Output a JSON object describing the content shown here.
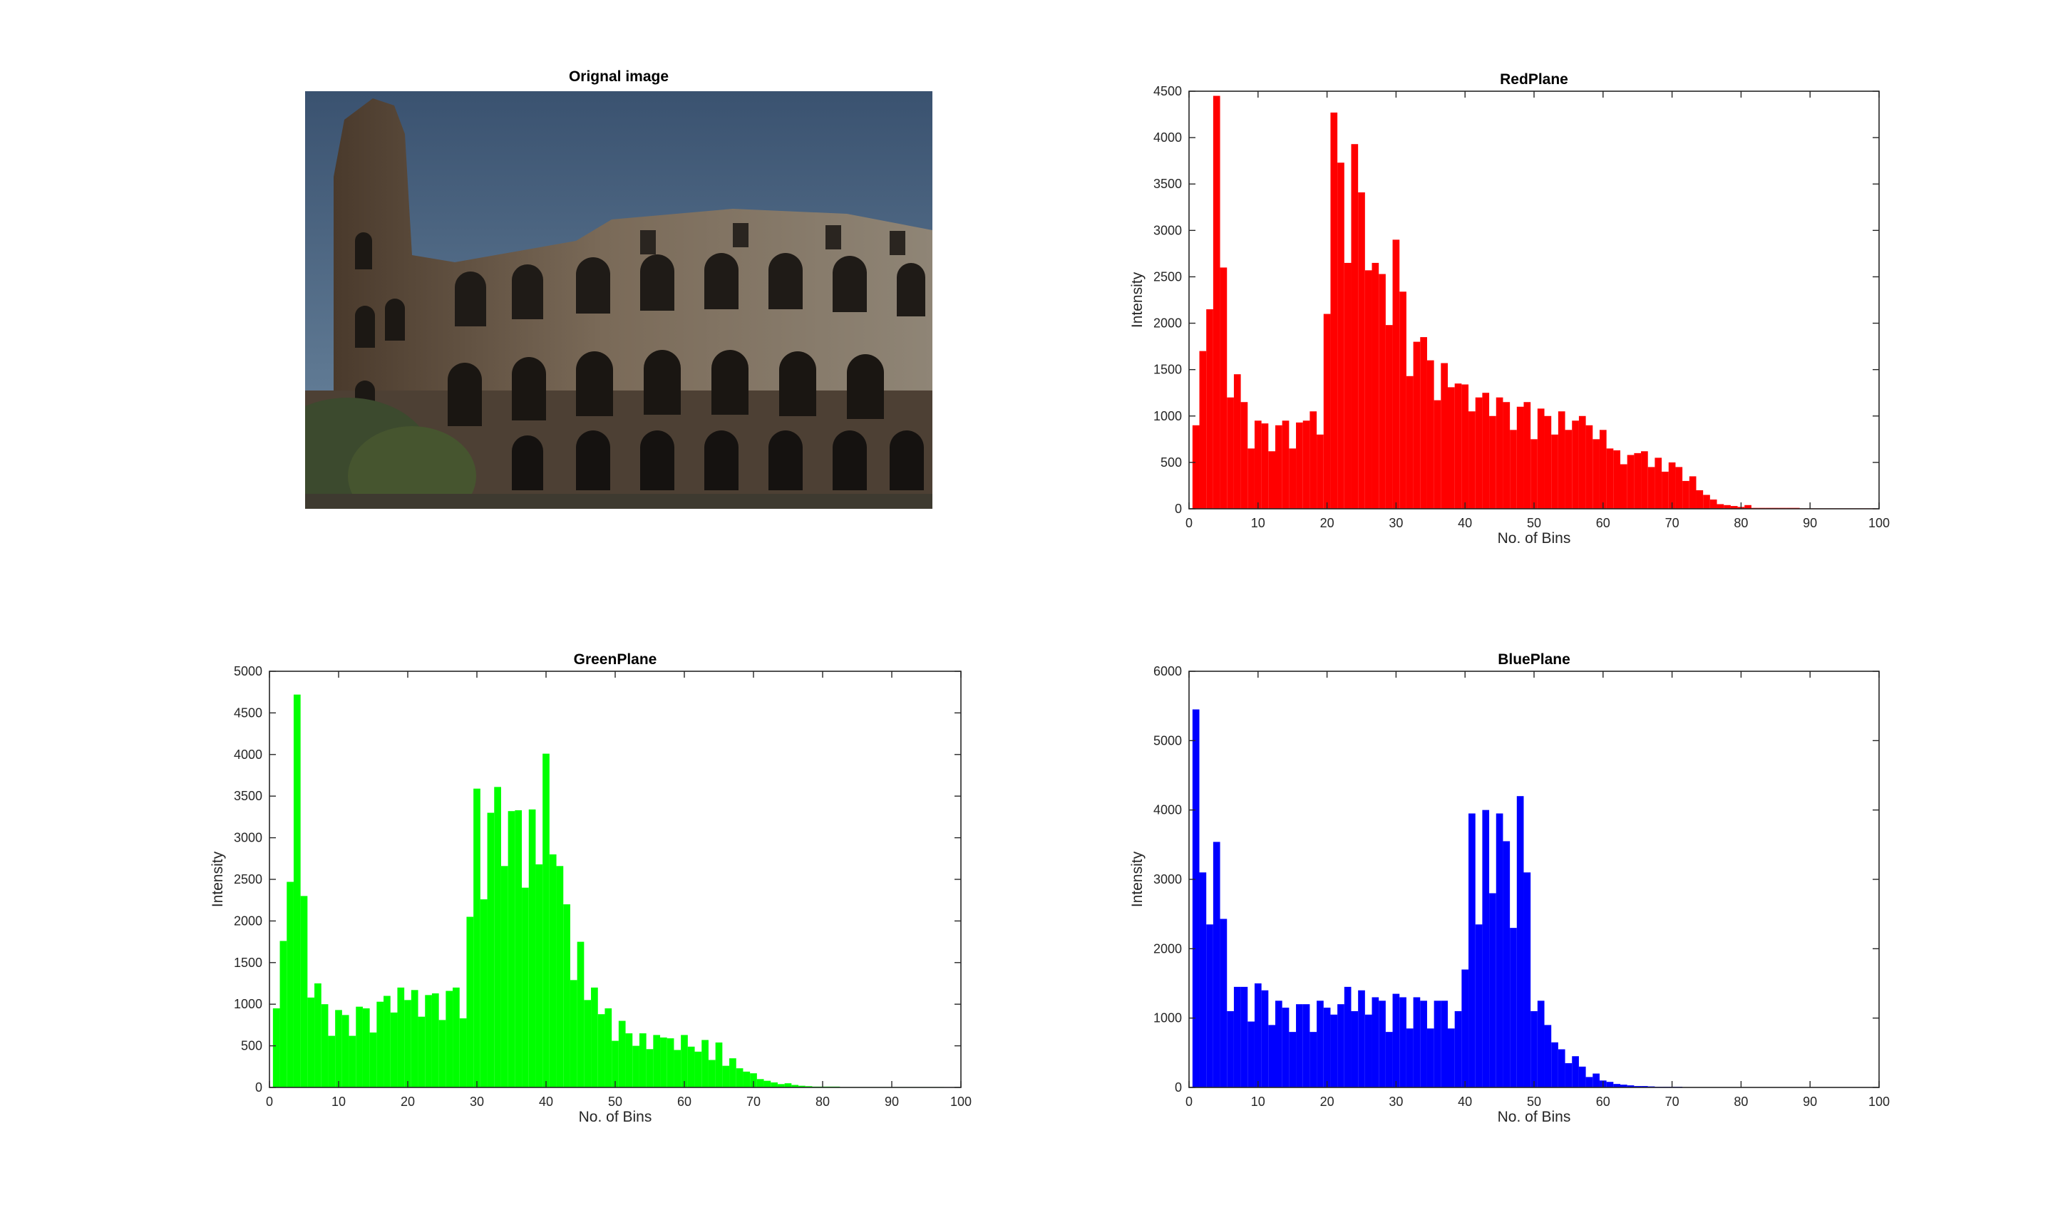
{
  "figure": {
    "image_panel": {
      "title": "Orignal image"
    }
  },
  "chart_data": [
    {
      "type": "bar",
      "title": "RedPlane",
      "xlabel": "No. of Bins",
      "ylabel": "Intensity",
      "color": "#ff0000",
      "xlim": [
        0,
        100
      ],
      "ylim": [
        0,
        4500
      ],
      "xticks": [
        0,
        10,
        20,
        30,
        40,
        50,
        60,
        70,
        80,
        90,
        100
      ],
      "yticks": [
        0,
        500,
        1000,
        1500,
        2000,
        2500,
        3000,
        3500,
        4000,
        4500
      ],
      "x": [
        1,
        2,
        3,
        4,
        5,
        6,
        7,
        8,
        9,
        10,
        11,
        12,
        13,
        14,
        15,
        16,
        17,
        18,
        19,
        20,
        21,
        22,
        23,
        24,
        25,
        26,
        27,
        28,
        29,
        30,
        31,
        32,
        33,
        34,
        35,
        36,
        37,
        38,
        39,
        40,
        41,
        42,
        43,
        44,
        45,
        46,
        47,
        48,
        49,
        50,
        51,
        52,
        53,
        54,
        55,
        56,
        57,
        58,
        59,
        60,
        61,
        62,
        63,
        64,
        65,
        66,
        67,
        68,
        69,
        70,
        71,
        72,
        73,
        74,
        75,
        76,
        77,
        78,
        79,
        80,
        81,
        82,
        83,
        84,
        85,
        86,
        87,
        88,
        89,
        90,
        91,
        92,
        93,
        94,
        95,
        96,
        97,
        98,
        99,
        100
      ],
      "values": [
        900,
        1700,
        2150,
        4450,
        2600,
        1200,
        1450,
        1150,
        650,
        950,
        920,
        620,
        900,
        950,
        650,
        930,
        950,
        1050,
        800,
        2100,
        4270,
        3730,
        2650,
        3930,
        3410,
        2570,
        2650,
        2530,
        1980,
        2900,
        2340,
        1430,
        1800,
        1850,
        1600,
        1170,
        1570,
        1310,
        1350,
        1340,
        1050,
        1200,
        1250,
        1000,
        1200,
        1150,
        850,
        1100,
        1150,
        750,
        1080,
        1000,
        800,
        1050,
        850,
        950,
        1000,
        900,
        750,
        850,
        650,
        630,
        480,
        580,
        600,
        620,
        450,
        550,
        400,
        500,
        450,
        300,
        350,
        200,
        150,
        100,
        50,
        40,
        30,
        20,
        40,
        10,
        10,
        10,
        10,
        10,
        10,
        10,
        5,
        5,
        5,
        5,
        5,
        5,
        5,
        5,
        5,
        5,
        5,
        0
      ]
    },
    {
      "type": "bar",
      "title": "GreenPlane",
      "xlabel": "No. of Bins",
      "ylabel": "Intensity",
      "color": "#00ff00",
      "xlim": [
        0,
        100
      ],
      "ylim": [
        0,
        5000
      ],
      "xticks": [
        0,
        10,
        20,
        30,
        40,
        50,
        60,
        70,
        80,
        90,
        100
      ],
      "yticks": [
        0,
        500,
        1000,
        1500,
        2000,
        2500,
        3000,
        3500,
        4000,
        4500,
        5000
      ],
      "x": [
        1,
        2,
        3,
        4,
        5,
        6,
        7,
        8,
        9,
        10,
        11,
        12,
        13,
        14,
        15,
        16,
        17,
        18,
        19,
        20,
        21,
        22,
        23,
        24,
        25,
        26,
        27,
        28,
        29,
        30,
        31,
        32,
        33,
        34,
        35,
        36,
        37,
        38,
        39,
        40,
        41,
        42,
        43,
        44,
        45,
        46,
        47,
        48,
        49,
        50,
        51,
        52,
        53,
        54,
        55,
        56,
        57,
        58,
        59,
        60,
        61,
        62,
        63,
        64,
        65,
        66,
        67,
        68,
        69,
        70,
        71,
        72,
        73,
        74,
        75,
        76,
        77,
        78,
        79,
        80,
        81,
        82,
        83,
        84,
        85,
        86,
        87,
        88,
        89,
        90,
        91,
        92,
        93,
        94,
        95,
        96,
        97,
        98,
        99,
        100
      ],
      "values": [
        950,
        1760,
        2470,
        4720,
        2300,
        1080,
        1250,
        1000,
        620,
        930,
        870,
        620,
        970,
        950,
        660,
        1030,
        1100,
        900,
        1200,
        1050,
        1170,
        850,
        1110,
        1130,
        810,
        1160,
        1200,
        830,
        2050,
        3590,
        2260,
        3300,
        3610,
        2660,
        3320,
        3330,
        2400,
        3340,
        2680,
        4010,
        2800,
        2660,
        2200,
        1290,
        1750,
        1050,
        1200,
        880,
        950,
        560,
        800,
        650,
        500,
        650,
        460,
        630,
        600,
        590,
        450,
        630,
        490,
        430,
        570,
        330,
        540,
        260,
        350,
        230,
        190,
        170,
        100,
        80,
        60,
        40,
        50,
        30,
        20,
        15,
        10,
        10,
        10,
        10,
        5,
        5,
        5,
        5,
        5,
        5,
        5,
        5,
        5,
        5,
        5,
        5,
        5,
        5,
        5,
        0,
        0,
        0
      ]
    },
    {
      "type": "bar",
      "title": "BluePlane",
      "xlabel": "No. of Bins",
      "ylabel": "Intensity",
      "color": "#0000ff",
      "xlim": [
        0,
        100
      ],
      "ylim": [
        0,
        6000
      ],
      "xticks": [
        0,
        10,
        20,
        30,
        40,
        50,
        60,
        70,
        80,
        90,
        100
      ],
      "yticks": [
        0,
        1000,
        2000,
        3000,
        4000,
        5000,
        6000
      ],
      "x": [
        1,
        2,
        3,
        4,
        5,
        6,
        7,
        8,
        9,
        10,
        11,
        12,
        13,
        14,
        15,
        16,
        17,
        18,
        19,
        20,
        21,
        22,
        23,
        24,
        25,
        26,
        27,
        28,
        29,
        30,
        31,
        32,
        33,
        34,
        35,
        36,
        37,
        38,
        39,
        40,
        41,
        42,
        43,
        44,
        45,
        46,
        47,
        48,
        49,
        50,
        51,
        52,
        53,
        54,
        55,
        56,
        57,
        58,
        59,
        60,
        61,
        62,
        63,
        64,
        65,
        66,
        67,
        68,
        69,
        70,
        71,
        72,
        73,
        74,
        75,
        76,
        77,
        78,
        79,
        80,
        81,
        82,
        83,
        84,
        85,
        86,
        87,
        88,
        89,
        90,
        91,
        92,
        93,
        94,
        95,
        96,
        97,
        98,
        99,
        100
      ],
      "values": [
        5450,
        3100,
        2350,
        3540,
        2430,
        1100,
        1450,
        1450,
        950,
        1500,
        1400,
        900,
        1250,
        1150,
        800,
        1200,
        1200,
        800,
        1250,
        1150,
        1050,
        1200,
        1450,
        1100,
        1400,
        1050,
        1300,
        1250,
        800,
        1350,
        1300,
        850,
        1300,
        1250,
        850,
        1250,
        1250,
        850,
        1100,
        1700,
        3950,
        2350,
        4000,
        2800,
        3950,
        3550,
        2300,
        4200,
        3100,
        1100,
        1250,
        900,
        650,
        550,
        350,
        450,
        300,
        150,
        200,
        100,
        80,
        50,
        40,
        30,
        20,
        20,
        15,
        10,
        10,
        10,
        10,
        5,
        5,
        5,
        5,
        5,
        5,
        5,
        5,
        5,
        5,
        5,
        5,
        5,
        5,
        5,
        5,
        5,
        5,
        5,
        5,
        5,
        5,
        5,
        5,
        5,
        5,
        5,
        5,
        0
      ]
    }
  ]
}
